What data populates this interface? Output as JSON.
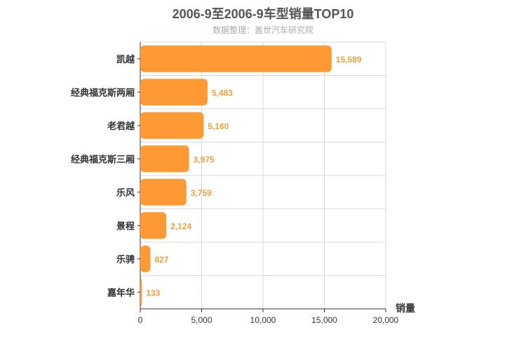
{
  "chart_data": {
    "type": "bar",
    "orientation": "horizontal",
    "title": "2006-9至2006-9车型销量TOP10",
    "subtitle": "数据整理：盖世汽车研究院",
    "categories": [
      "凯越",
      "经典福克斯两厢",
      "老君越",
      "经典福克斯三厢",
      "乐风",
      "景程",
      "乐骋",
      "嘉年华"
    ],
    "values": [
      15589,
      5483,
      5160,
      3975,
      3759,
      2124,
      827,
      133
    ],
    "value_labels": [
      "15,589",
      "5,483",
      "5,160",
      "3,975",
      "3,759",
      "2,124",
      "827",
      "133"
    ],
    "xlabel": "销量",
    "ylabel": "",
    "xlim": [
      0,
      20000
    ],
    "xticks": [
      0,
      5000,
      10000,
      15000,
      20000
    ],
    "xtick_labels": [
      "0",
      "5,000",
      "10,000",
      "15,000",
      "20,000"
    ],
    "bar_color": "#ff9933",
    "label_color": "#f0a040",
    "grid": true
  }
}
